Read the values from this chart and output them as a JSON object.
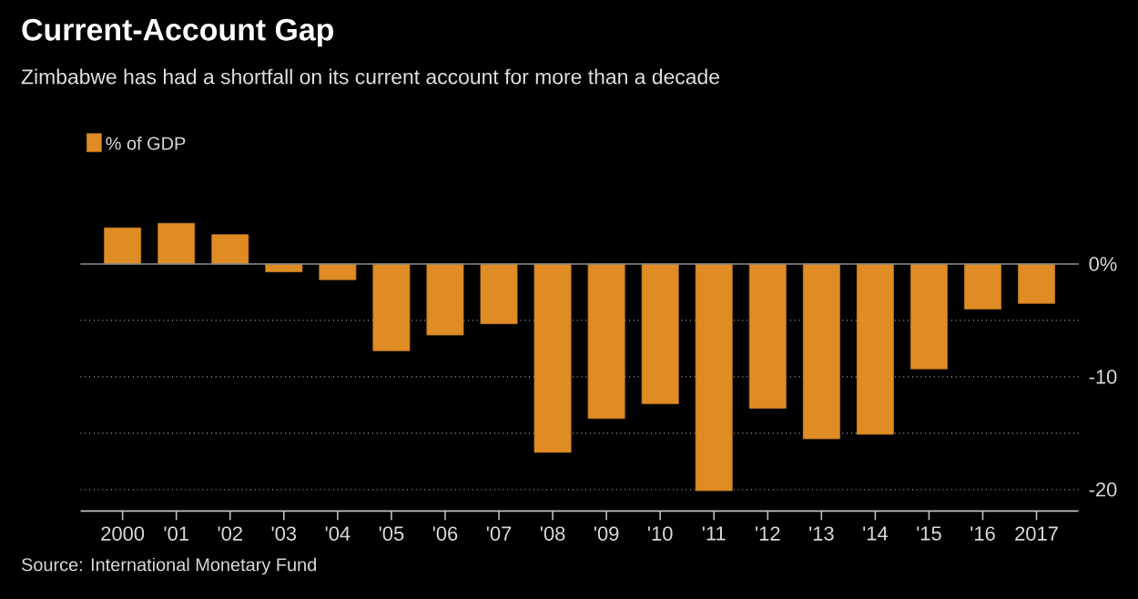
{
  "chart_data": {
    "type": "bar",
    "title": "Current-Account Gap",
    "subtitle": "Zimbabwe has had a shortfall on its current account for more than a decade",
    "categories": [
      "2000",
      "'01",
      "'02",
      "'03",
      "'04",
      "'05",
      "'06",
      "'07",
      "'08",
      "'09",
      "'10",
      "'11",
      "'12",
      "'13",
      "'14",
      "'15",
      "'16",
      "2017"
    ],
    "series": [
      {
        "name": "% of GDP",
        "color": "#e08c25",
        "values": [
          3.2,
          3.6,
          2.6,
          -0.7,
          -1.4,
          -7.7,
          -6.3,
          -5.3,
          -16.7,
          -13.7,
          -12.4,
          -20.1,
          -12.8,
          -15.5,
          -15.1,
          -9.3,
          -4.0,
          -3.5
        ]
      }
    ],
    "yticks": [
      {
        "value": 0,
        "label": "0%"
      },
      {
        "value": -5,
        "label": null
      },
      -10,
      {
        "value": -15,
        "label": null
      },
      -20
    ],
    "ylim": [
      -21.9,
      3.6
    ],
    "grid": "y",
    "legend": "top left",
    "ref_lines": [
      {
        "axis": "y",
        "value": 0,
        "color": "#8a8a8a"
      }
    ],
    "annotations": [
      "Source: International Monetary Fund"
    ]
  }
}
